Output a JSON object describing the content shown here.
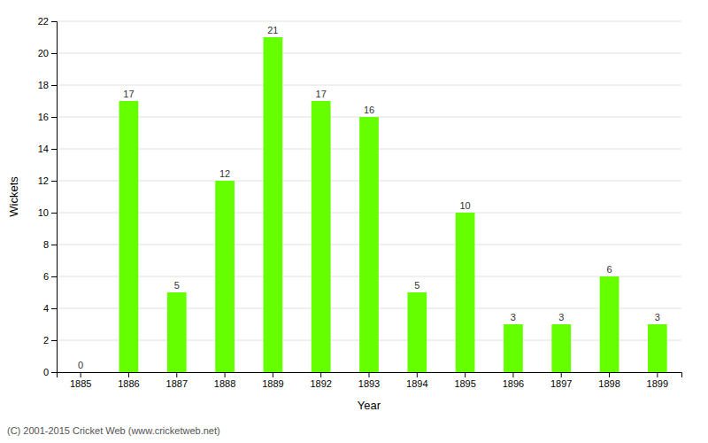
{
  "chart_data": {
    "type": "bar",
    "categories": [
      "1885",
      "1886",
      "1887",
      "1888",
      "1889",
      "1892",
      "1893",
      "1894",
      "1895",
      "1896",
      "1897",
      "1898",
      "1899"
    ],
    "values": [
      0,
      17,
      5,
      12,
      21,
      17,
      16,
      5,
      10,
      3,
      3,
      6,
      3
    ],
    "color": "#66ff00",
    "xlabel": "Year",
    "ylabel": "Wickets",
    "ylim": [
      0,
      22
    ],
    "yticks": [
      0,
      2,
      4,
      6,
      8,
      10,
      12,
      14,
      16,
      18,
      20,
      22
    ],
    "grid": true,
    "data_labels": true,
    "annotations": [
      "(C) 2001-2015 Cricket Web (www.cricketweb.net)"
    ]
  }
}
